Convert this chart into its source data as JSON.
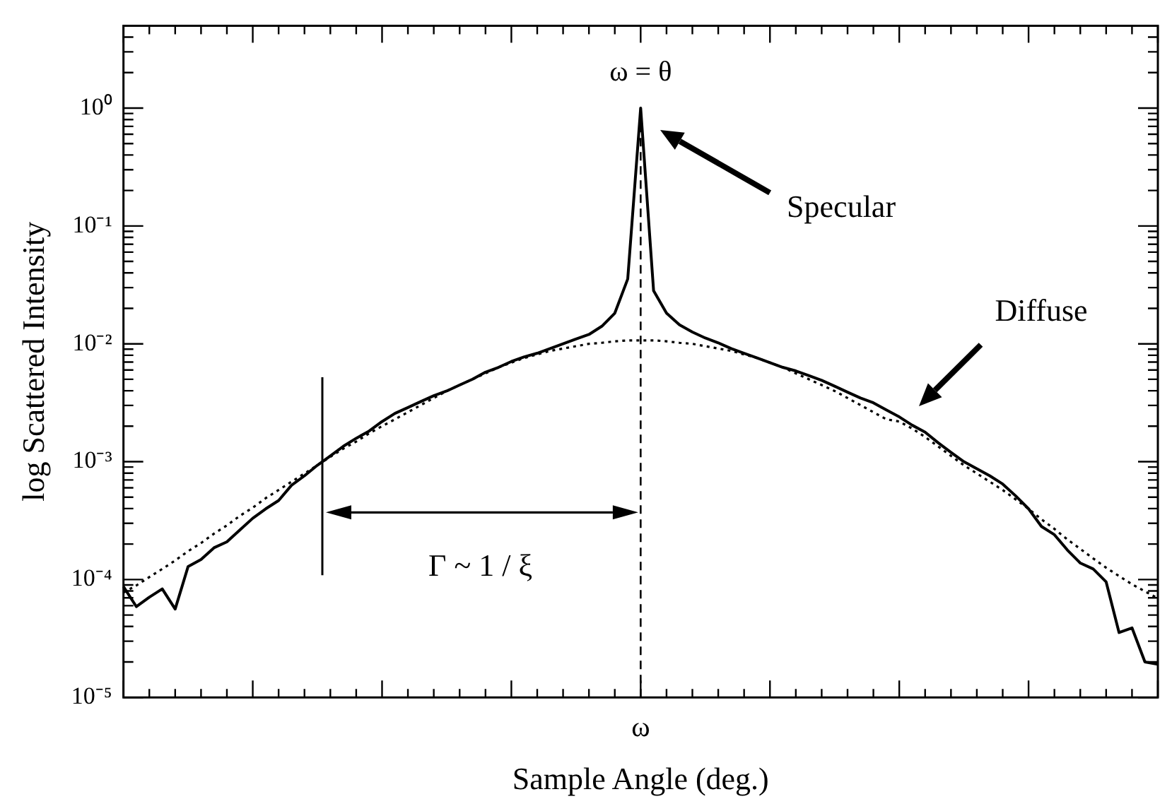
{
  "chart_data": {
    "type": "line",
    "xlabel": "Sample Angle (deg.)",
    "ylabel": "log Scattered Intensity",
    "categories": [
      null,
      null,
      null,
      null,
      null,
      null,
      null,
      null,
      null,
      null,
      null,
      null,
      null,
      null,
      null,
      null,
      null,
      null,
      null,
      null,
      null,
      null,
      null,
      null,
      null,
      null,
      null,
      null,
      null,
      null,
      null,
      null,
      null,
      null,
      null,
      null,
      null,
      null,
      null,
      null,
      "ω",
      null,
      null,
      null,
      null,
      null,
      null,
      null,
      null,
      null,
      null,
      null,
      null,
      null,
      null,
      null,
      null,
      null,
      null,
      null,
      null,
      null,
      null,
      null,
      null,
      null,
      null,
      null,
      null,
      null,
      null,
      null,
      null,
      null,
      null,
      null,
      null,
      null,
      null,
      null,
      null
    ],
    "series": [
      {
        "color": "#000000",
        "line_style": "solid",
        "values": [
          8.71e-05,
          5.89e-05,
          7.08e-05,
          8.32e-05,
          5.62e-05,
          0.000129,
          0.000148,
          0.000186,
          0.000209,
          0.000263,
          0.000331,
          0.000398,
          0.000468,
          0.000631,
          0.000759,
          0.000933,
          0.00112,
          0.00135,
          0.00158,
          0.00182,
          0.00219,
          0.00257,
          0.00288,
          0.00324,
          0.00363,
          0.00398,
          0.00447,
          0.00501,
          0.00575,
          0.00631,
          0.00708,
          0.00776,
          0.00832,
          0.00912,
          0.01,
          0.011,
          0.012,
          0.0141,
          0.0182,
          0.0355,
          1,
          0.0282,
          0.0182,
          0.0145,
          0.0126,
          0.0112,
          0.0102,
          0.00912,
          0.00832,
          0.00759,
          0.00692,
          0.00631,
          0.00589,
          0.00537,
          0.0049,
          0.00437,
          0.00389,
          0.00347,
          0.00316,
          0.00275,
          0.0024,
          0.00204,
          0.00178,
          0.00145,
          0.0012,
          0.001,
          0.000871,
          0.000759,
          0.000646,
          0.000513,
          0.000398,
          0.000282,
          0.00024,
          0.000178,
          0.000138,
          0.000123,
          9.55e-05,
          3.55e-05,
          3.89e-05,
          2e-05,
          1.91e-05
        ]
      },
      {
        "color": "#000000",
        "line_style": "dotted",
        "values": [
          7.76e-05,
          8.91e-05,
          0.000105,
          0.000123,
          0.000145,
          0.000174,
          0.000204,
          0.000245,
          0.000288,
          0.000347,
          0.000407,
          0.00049,
          0.000575,
          0.000676,
          0.000794,
          0.000933,
          0.0011,
          0.00129,
          0.00148,
          0.00174,
          0.002,
          0.00229,
          0.00263,
          0.00302,
          0.00347,
          0.00398,
          0.00447,
          0.00501,
          0.00562,
          0.00631,
          0.00692,
          0.00759,
          0.00813,
          0.00871,
          0.00912,
          0.00955,
          0.01,
          0.0102,
          0.0105,
          0.0107,
          0.0107,
          0.0107,
          0.0105,
          0.0102,
          0.01,
          0.00955,
          0.00912,
          0.00871,
          0.00813,
          0.00759,
          0.00692,
          0.00631,
          0.00562,
          0.00501,
          0.00447,
          0.00398,
          0.00347,
          0.00302,
          0.00263,
          0.00229,
          0.00219,
          0.00191,
          0.00162,
          0.00135,
          0.00112,
          0.000933,
          0.000794,
          0.000676,
          0.000575,
          0.000479,
          0.000398,
          0.000324,
          0.000269,
          0.000219,
          0.000182,
          0.000151,
          0.000126,
          0.000107,
          9.12e-05,
          7.94e-05,
          6.92e-05
        ]
      }
    ],
    "log": "y",
    "ylim": [
      1e-05,
      5
    ],
    "yticks": [
      {
        "value": 1e-05,
        "label": "10⁻⁵"
      },
      {
        "value": 0.0001,
        "label": "10⁻⁴"
      },
      {
        "value": 0.001,
        "label": "10⁻³"
      },
      {
        "value": 0.01,
        "label": "10⁻²"
      },
      {
        "value": 0.1,
        "label": "10⁻¹"
      },
      {
        "value": 1,
        "label": "10⁰"
      }
    ],
    "ref_lines": [
      {
        "axis": "x",
        "value": "ω",
        "line_style": "dashed"
      }
    ],
    "annotations": [
      "ω = θ",
      "Specular",
      "Diffuse",
      "Γ ~ 1 / ξ"
    ],
    "marker": "none",
    "grid": false,
    "legend": false
  }
}
